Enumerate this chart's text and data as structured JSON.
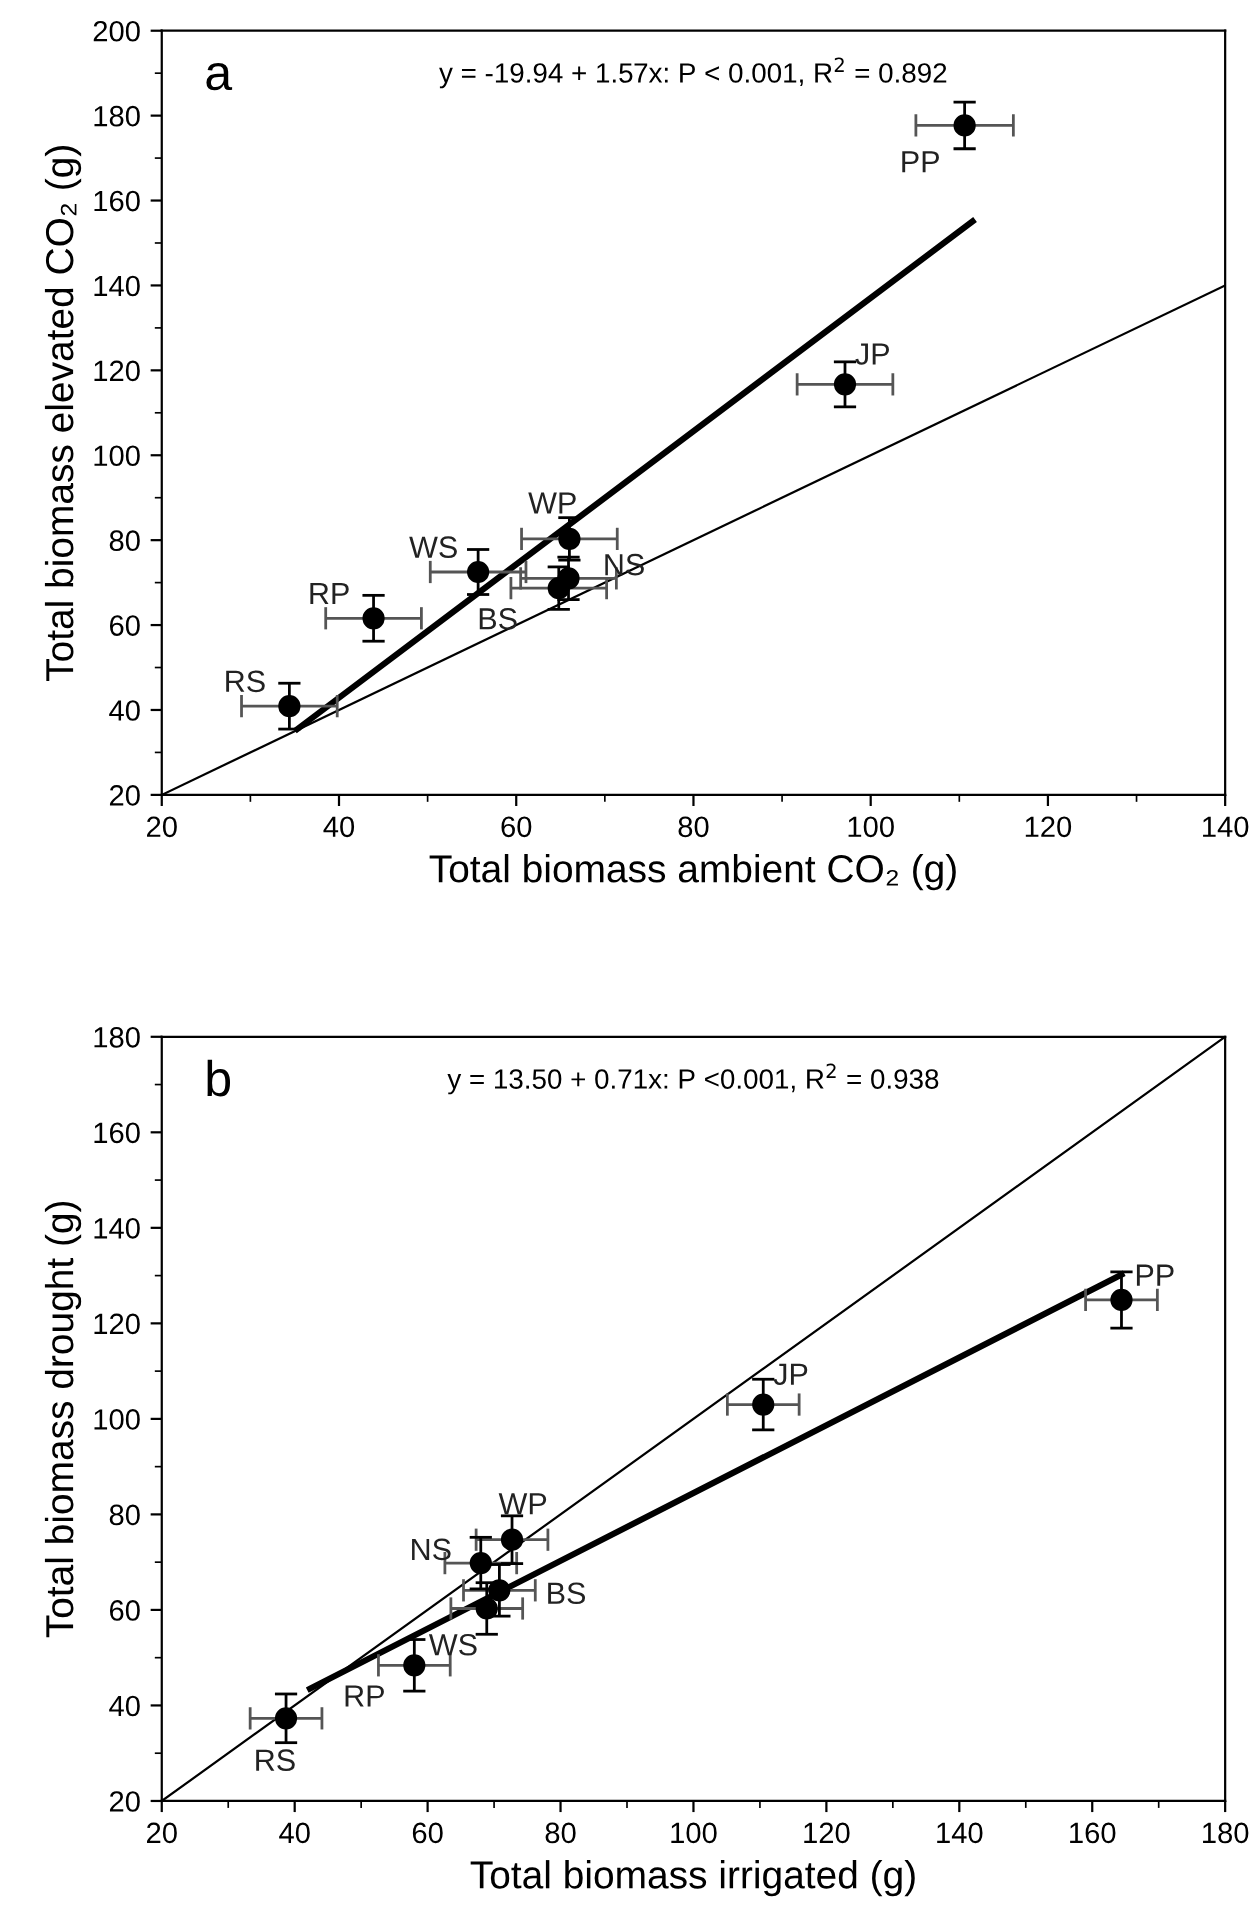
{
  "chart_data": [
    {
      "type": "scatter",
      "title": "a",
      "xlabel": "Total biomass ambient CO₂ (g)",
      "ylabel": "Total biomass elevated CO₂ (g)",
      "xlim": [
        20,
        140
      ],
      "ylim": [
        20,
        200
      ],
      "xticks": [
        20,
        40,
        60,
        80,
        100,
        120,
        140
      ],
      "yticks": [
        20,
        40,
        60,
        80,
        100,
        120,
        140,
        160,
        180,
        200
      ],
      "grid": false,
      "legend": false,
      "annotations": [
        "y = -19.94 + 1.57x: P < 0.001, R$^{2}$ = 0.892",
        {
          "text": "RS",
          "x": 34.4,
          "y": 40.9
        },
        {
          "text": "RP",
          "x": 43.9,
          "y": 61.6
        },
        {
          "text": "WS",
          "x": 55.7,
          "y": 72.5
        },
        {
          "text": "WP",
          "x": 66.0,
          "y": 80.3
        },
        {
          "text": "NS",
          "x": 65.9,
          "y": 71.0
        },
        {
          "text": "BS",
          "x": 64.8,
          "y": 68.7
        },
        {
          "text": "JP",
          "x": 97.1,
          "y": 116.7
        },
        {
          "text": "PP",
          "x": 110.6,
          "y": 177.7
        }
      ],
      "series": [
        {
          "type": "line",
          "color": "#000000",
          "marker": "none",
          "line_style": "solid",
          "x": [
            20,
            140
          ],
          "values": [
            20,
            140
          ]
        },
        {
          "type": "line",
          "color": "#000000",
          "marker": "none",
          "line_style": "solid",
          "x": [
            35.3,
            111.5
          ],
          "values": [
            35.5,
            155.1
          ]
        },
        {
          "color": "#000000",
          "marker": "circle",
          "x": [
            34.4,
            43.9,
            55.7,
            66.0,
            65.9,
            64.8,
            97.1,
            110.6
          ],
          "values": [
            40.9,
            61.6,
            72.5,
            80.3,
            71.0,
            68.7,
            116.7,
            177.7
          ],
          "errors": [
            5.4,
            5.4,
            5.3,
            5.0,
            5.0,
            5.0,
            5.3,
            5.5
          ],
          "xerrors": [
            5.4,
            5.4,
            5.4,
            5.4,
            5.4,
            5.4,
            5.4,
            5.5
          ]
        }
      ]
    },
    {
      "type": "scatter",
      "title": "b",
      "xlabel": "Total biomass irrigated (g)",
      "ylabel": "Total biomass drought (g)",
      "xlim": [
        20,
        180
      ],
      "ylim": [
        20,
        180
      ],
      "xticks": [
        20,
        40,
        60,
        80,
        100,
        120,
        140,
        160,
        180
      ],
      "yticks": [
        20,
        40,
        60,
        80,
        100,
        120,
        140,
        160,
        180
      ],
      "grid": false,
      "legend": false,
      "annotations": [
        "y = 13.50 + 0.71x: P <0.001, R$^{2}$ = 0.938",
        {
          "text": "RS",
          "x": 38.7,
          "y": 37.3
        },
        {
          "text": "RP",
          "x": 58.0,
          "y": 48.4
        },
        {
          "text": "WS",
          "x": 68.9,
          "y": 60.3
        },
        {
          "text": "BS",
          "x": 70.8,
          "y": 64.1
        },
        {
          "text": "NS",
          "x": 68.0,
          "y": 69.8
        },
        {
          "text": "WP",
          "x": 72.7,
          "y": 74.7
        },
        {
          "text": "JP",
          "x": 110.5,
          "y": 103
        },
        {
          "text": "PP",
          "x": 164.4,
          "y": 124.9
        }
      ],
      "series": [
        {
          "type": "line",
          "color": "#000000",
          "marker": "none",
          "line_style": "solid",
          "x": [
            20,
            180
          ],
          "values": [
            20,
            180
          ]
        },
        {
          "type": "line",
          "color": "#000000",
          "marker": "none",
          "line_style": "solid",
          "x": [
            42.3,
            164.4
          ],
          "values": [
            43.5,
            130.2
          ]
        },
        {
          "color": "#000000",
          "marker": "circle",
          "x": [
            38.7,
            58.0,
            68.9,
            70.8,
            68.0,
            72.7,
            110.5,
            164.4
          ],
          "values": [
            37.3,
            48.4,
            60.3,
            64.1,
            69.8,
            74.7,
            103,
            124.9
          ],
          "errors": [
            5.1,
            5.4,
            5.4,
            5.4,
            5.4,
            5.0,
            5.3,
            5.9
          ],
          "xerrors": [
            5.4,
            5.4,
            5.4,
            5.4,
            5.4,
            5.4,
            5.4,
            5.4
          ]
        }
      ]
    }
  ]
}
